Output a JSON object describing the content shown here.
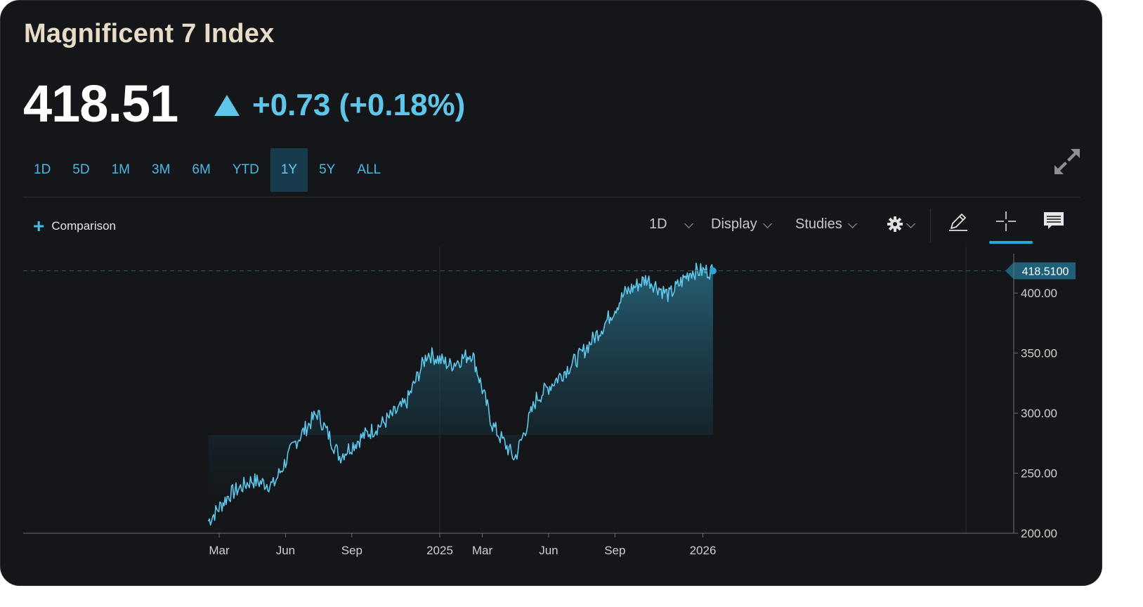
{
  "header": {
    "title": "Magnificent 7 Index",
    "price": "418.51",
    "change": "+0.73 (+0.18%)"
  },
  "ranges": [
    "1D",
    "5D",
    "1M",
    "3M",
    "6M",
    "YTD",
    "1Y",
    "5Y",
    "ALL"
  ],
  "active_range": "1Y",
  "toolbar": {
    "comparison": "Comparison",
    "interval": "1D",
    "display": "Display",
    "studies": "Studies"
  },
  "colors": {
    "accent": "#4bb8e6",
    "line": "#5ec8ec",
    "positive": "#5fc6ea",
    "title": "#e8dcc8",
    "background": "#141619"
  },
  "icons": [
    "expand-icon",
    "plus-icon",
    "gear-icon",
    "pencil-icon",
    "crosshair-icon",
    "comment-icon"
  ],
  "chart_data": {
    "type": "area",
    "title": "",
    "xlabel": "",
    "ylabel": "",
    "x_ticks": [
      "Mar",
      "Jun",
      "Sep",
      "2025",
      "Mar",
      "Jun",
      "Sep",
      "2026"
    ],
    "y_ticks": [
      "200.00",
      "250.00",
      "300.00",
      "350.00",
      "400.00"
    ],
    "ylim": [
      200,
      427
    ],
    "last_value_label": "418.5100",
    "grid": "vertical line at 2025 and 2026 only",
    "x": [
      "2024-02",
      "2024-03",
      "2024-04",
      "2024-05",
      "2024-06",
      "2024-07",
      "2024-08",
      "2024-09",
      "2024-10",
      "2024-11",
      "2024-12",
      "2025-01",
      "2025-02",
      "2025-03",
      "2025-04",
      "2025-05",
      "2025-06",
      "2025-07",
      "2025-08",
      "2025-09",
      "2025-10",
      "2025-11",
      "2025-12",
      "2026-01"
    ],
    "values": [
      210,
      232,
      244,
      240,
      276,
      300,
      264,
      280,
      292,
      308,
      350,
      340,
      350,
      290,
      262,
      312,
      330,
      348,
      372,
      400,
      412,
      398,
      418,
      418.51
    ]
  }
}
